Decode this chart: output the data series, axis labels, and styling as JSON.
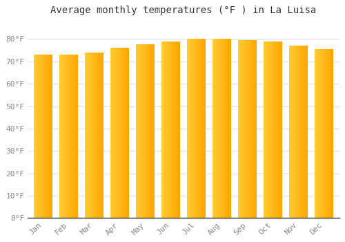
{
  "months": [
    "Jan",
    "Feb",
    "Mar",
    "Apr",
    "May",
    "Jun",
    "Jul",
    "Aug",
    "Sep",
    "Oct",
    "Nov",
    "Dec"
  ],
  "values": [
    73,
    73,
    74,
    76,
    77.5,
    79,
    80,
    80,
    79.5,
    79,
    77,
    75.5
  ],
  "title": "Average monthly temperatures (°F ) in La Luisa",
  "ylim": [
    0,
    88
  ],
  "yticks": [
    0,
    10,
    20,
    30,
    40,
    50,
    60,
    70,
    80
  ],
  "ytick_labels": [
    "0°F",
    "10°F",
    "20°F",
    "30°F",
    "40°F",
    "50°F",
    "60°F",
    "70°F",
    "80°F"
  ],
  "bar_color_left": "#FFCC33",
  "bar_color_right": "#FFA500",
  "background_color": "#FFFFFF",
  "grid_color": "#DDDDDD",
  "title_color": "#333333",
  "tick_label_color": "#888888",
  "title_fontsize": 10,
  "tick_fontsize": 8,
  "bar_width": 0.75,
  "n_grad": 60
}
